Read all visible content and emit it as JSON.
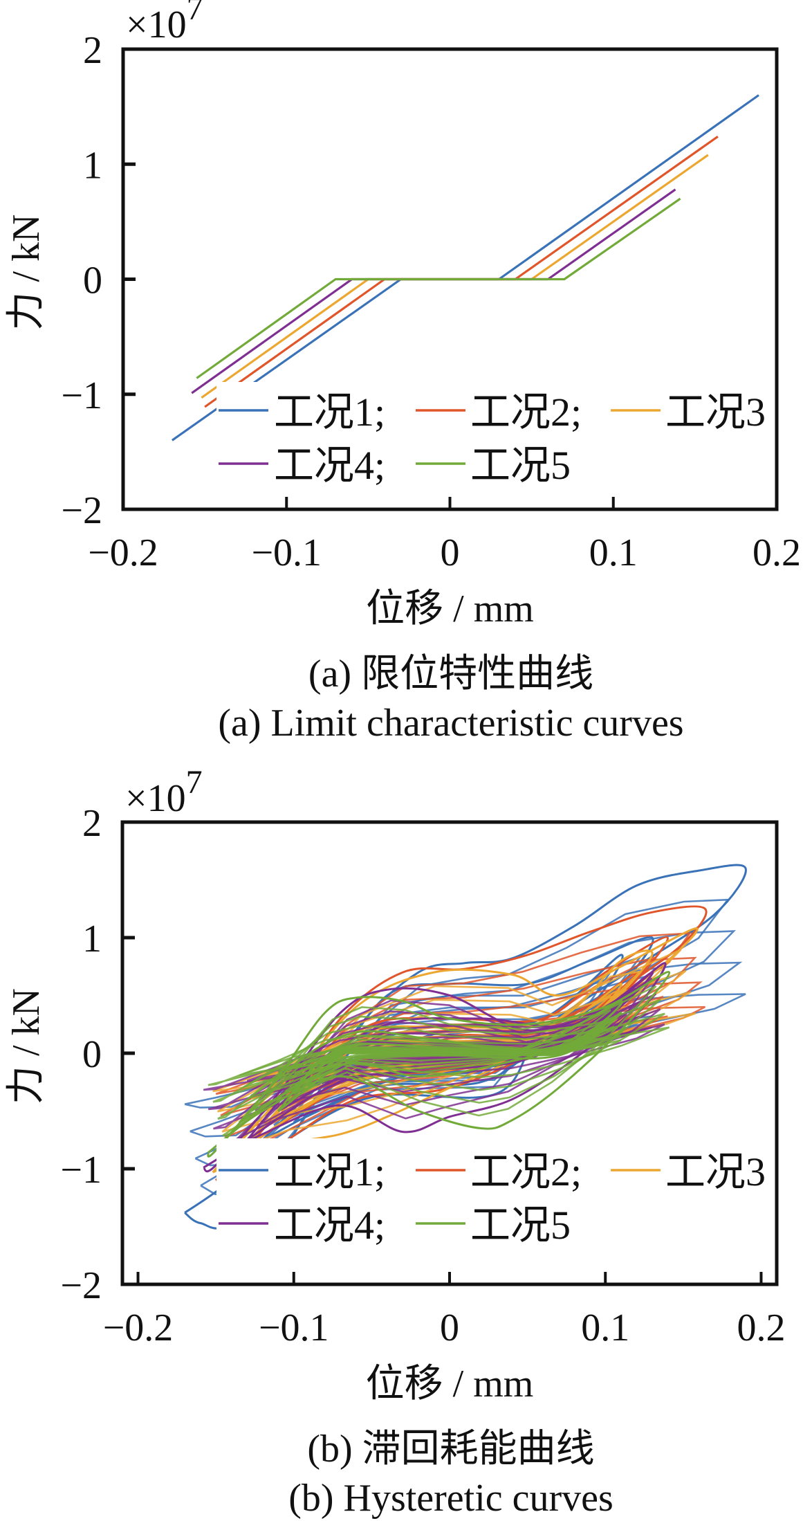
{
  "chart_data": [
    {
      "id": "a",
      "type": "line",
      "exponent_label": "×10",
      "exponent_power": "7",
      "xlabel": "位移 / mm",
      "ylabel": "力 / kN",
      "caption_cn": "(a)  限位特性曲线",
      "caption_en": "(a)  Limit characteristic curves",
      "xlim": [
        -0.2,
        0.2
      ],
      "ylim": [
        -2,
        2
      ],
      "xticks": [
        -0.2,
        -0.1,
        0,
        0.1,
        0.2
      ],
      "xtick_labels": [
        "−0.2",
        "−0.1",
        "0",
        "0.1",
        "0.2"
      ],
      "yticks": [
        -2,
        -1,
        0,
        1,
        2
      ],
      "ytick_labels": [
        "−2",
        "−1",
        "0",
        "1",
        "2"
      ],
      "y_scale_factor": 10000000,
      "grid": false,
      "legend": {
        "placement": "bottom-center",
        "columns": 3
      },
      "series": [
        {
          "name": "工况1;",
          "color": "#3a72b8",
          "points": [
            [
              -0.17,
              -1.4
            ],
            [
              -0.03,
              0
            ],
            [
              0.03,
              0
            ],
            [
              0.189,
              1.6
            ]
          ]
        },
        {
          "name": "工况2;",
          "color": "#e0552a",
          "points": [
            [
              -0.15,
              -1.11
            ],
            [
              -0.04,
              0
            ],
            [
              0.04,
              0
            ],
            [
              0.164,
              1.24
            ]
          ]
        },
        {
          "name": "工况3",
          "color": "#eca731",
          "points": [
            [
              -0.152,
              -1.03
            ],
            [
              -0.05,
              0
            ],
            [
              0.05,
              0
            ],
            [
              0.158,
              1.08
            ]
          ]
        },
        {
          "name": "工况4;",
          "color": "#7f2f91",
          "points": [
            [
              -0.158,
              -0.99
            ],
            [
              -0.06,
              0
            ],
            [
              0.06,
              0
            ],
            [
              0.138,
              0.78
            ]
          ]
        },
        {
          "name": "工况5",
          "color": "#72aa3a",
          "points": [
            [
              -0.155,
              -0.86
            ],
            [
              -0.07,
              0
            ],
            [
              0.07,
              0
            ],
            [
              0.141,
              0.7
            ]
          ]
        }
      ]
    },
    {
      "id": "b",
      "type": "line",
      "exponent_label": "×10",
      "exponent_power": "7",
      "xlabel": "位移 / mm",
      "ylabel": "力 / kN",
      "caption_cn": "(b)  滞回耗能曲线",
      "caption_en": "(b)  Hysteretic curves",
      "xlim": [
        -0.21,
        0.21
      ],
      "ylim": [
        -2,
        2
      ],
      "xticks": [
        -0.2,
        -0.1,
        0,
        0.1,
        0.2
      ],
      "xtick_labels": [
        "−0.2",
        "−0.1",
        "0",
        "0.1",
        "0.2"
      ],
      "yticks": [
        -2,
        -1,
        0,
        1,
        2
      ],
      "ytick_labels": [
        "−2",
        "−1",
        "0",
        "1",
        "2"
      ],
      "y_scale_factor": 10000000,
      "grid": false,
      "legend": {
        "placement": "bottom-center",
        "columns": 3
      },
      "series": [
        {
          "name": "工况1;",
          "color": "#3a72b8",
          "loops": [
            [
              [
                -0.17,
                -1.38
              ],
              [
                -0.16,
                -1.47
              ],
              [
                -0.14,
                -1.45
              ],
              [
                -0.1,
                -0.7
              ],
              [
                -0.06,
                0.2
              ],
              [
                -0.02,
                0.7
              ],
              [
                0.01,
                0.78
              ],
              [
                0.04,
                0.82
              ],
              [
                0.08,
                1.1
              ],
              [
                0.12,
                1.45
              ],
              [
                0.16,
                1.58
              ],
              [
                0.19,
                1.6
              ],
              [
                0.17,
                1.2
              ],
              [
                0.12,
                0.75
              ],
              [
                0.06,
                0.2
              ],
              [
                0.03,
                -0.35
              ],
              [
                -0.05,
                -0.38
              ],
              [
                -0.11,
                -0.8
              ],
              [
                -0.15,
                -1.2
              ],
              [
                -0.17,
                -1.38
              ]
            ],
            [
              [
                -0.12,
                -0.75
              ],
              [
                -0.08,
                -0.2
              ],
              [
                -0.04,
                0.5
              ],
              [
                0.0,
                0.6
              ],
              [
                0.05,
                0.6
              ],
              [
                0.09,
                0.8
              ],
              [
                0.13,
                1.0
              ],
              [
                0.11,
                0.6
              ],
              [
                0.06,
                0.1
              ],
              [
                0.02,
                -0.25
              ],
              [
                -0.05,
                -0.3
              ],
              [
                -0.12,
                -0.75
              ]
            ],
            [
              [
                -0.1,
                -0.6
              ],
              [
                -0.06,
                -0.1
              ],
              [
                0.0,
                0.2
              ],
              [
                0.06,
                0.3
              ],
              [
                0.11,
                0.85
              ],
              [
                0.09,
                0.4
              ],
              [
                0.04,
                -0.1
              ],
              [
                -0.03,
                -0.2
              ],
              [
                -0.1,
                -0.6
              ]
            ]
          ]
        },
        {
          "name": "工况2;",
          "color": "#e0552a",
          "loops": [
            [
              [
                -0.15,
                -1.1
              ],
              [
                -0.11,
                -0.5
              ],
              [
                -0.07,
                0.3
              ],
              [
                -0.03,
                0.7
              ],
              [
                0.01,
                0.73
              ],
              [
                0.05,
                0.85
              ],
              [
                0.09,
                1.05
              ],
              [
                0.13,
                1.22
              ],
              [
                0.164,
                1.25
              ],
              [
                0.15,
                0.95
              ],
              [
                0.11,
                0.55
              ],
              [
                0.06,
                0.05
              ],
              [
                0.0,
                -0.3
              ],
              [
                -0.06,
                -0.4
              ],
              [
                -0.11,
                -0.8
              ],
              [
                -0.15,
                -1.1
              ]
            ],
            [
              [
                -0.13,
                -0.8
              ],
              [
                -0.09,
                -0.2
              ],
              [
                -0.05,
                0.25
              ],
              [
                0.0,
                0.3
              ],
              [
                0.06,
                0.3
              ],
              [
                0.1,
                0.7
              ],
              [
                0.14,
                1.0
              ],
              [
                0.11,
                0.5
              ],
              [
                0.06,
                0.0
              ],
              [
                0.0,
                -0.15
              ],
              [
                -0.06,
                -0.25
              ],
              [
                -0.13,
                -0.8
              ]
            ],
            [
              [
                -0.11,
                -0.55
              ],
              [
                -0.07,
                0.0
              ],
              [
                0.0,
                0.15
              ],
              [
                0.06,
                0.2
              ],
              [
                0.12,
                0.7
              ],
              [
                0.08,
                0.25
              ],
              [
                0.02,
                -0.1
              ],
              [
                -0.05,
                -0.15
              ],
              [
                -0.11,
                -0.55
              ]
            ]
          ]
        },
        {
          "name": "工况3",
          "color": "#eca731",
          "loops": [
            [
              [
                -0.152,
                -1.03
              ],
              [
                -0.11,
                -0.4
              ],
              [
                -0.06,
                0.4
              ],
              [
                -0.01,
                0.7
              ],
              [
                0.04,
                0.68
              ],
              [
                0.07,
                0.5
              ],
              [
                0.11,
                0.75
              ],
              [
                0.158,
                1.08
              ],
              [
                0.14,
                0.8
              ],
              [
                0.1,
                0.4
              ],
              [
                0.05,
                0.0
              ],
              [
                0.0,
                -0.3
              ],
              [
                -0.04,
                -0.55
              ],
              [
                -0.07,
                -0.7
              ],
              [
                -0.11,
                -0.8
              ],
              [
                -0.152,
                -1.03
              ]
            ],
            [
              [
                -0.13,
                -0.8
              ],
              [
                -0.09,
                -0.2
              ],
              [
                -0.05,
                0.2
              ],
              [
                0.01,
                0.22
              ],
              [
                0.07,
                0.3
              ],
              [
                0.11,
                0.8
              ],
              [
                0.13,
                0.85
              ],
              [
                0.1,
                0.4
              ],
              [
                0.05,
                0.0
              ],
              [
                -0.01,
                -0.1
              ],
              [
                -0.07,
                -0.3
              ],
              [
                -0.13,
                -0.8
              ]
            ],
            [
              [
                -0.115,
                -0.6
              ],
              [
                -0.07,
                0.05
              ],
              [
                0.0,
                0.1
              ],
              [
                0.06,
                0.15
              ],
              [
                0.11,
                0.6
              ],
              [
                0.08,
                0.2
              ],
              [
                0.02,
                -0.05
              ],
              [
                -0.05,
                -0.2
              ],
              [
                -0.115,
                -0.6
              ]
            ]
          ]
        },
        {
          "name": "工况4;",
          "color": "#7f2f91",
          "loops": [
            [
              [
                -0.158,
                -0.99
              ],
              [
                -0.15,
                -0.97
              ],
              [
                -0.11,
                -0.35
              ],
              [
                -0.07,
                0.35
              ],
              [
                -0.04,
                0.55
              ],
              [
                0.0,
                0.5
              ],
              [
                0.05,
                0.2
              ],
              [
                0.1,
                0.4
              ],
              [
                0.138,
                0.78
              ],
              [
                0.12,
                0.4
              ],
              [
                0.08,
                -0.05
              ],
              [
                0.04,
                -0.4
              ],
              [
                0.0,
                -0.55
              ],
              [
                -0.03,
                -0.68
              ],
              [
                -0.07,
                -0.45
              ],
              [
                -0.12,
                -0.7
              ],
              [
                -0.158,
                -0.99
              ]
            ],
            [
              [
                -0.13,
                -0.75
              ],
              [
                -0.09,
                -0.15
              ],
              [
                -0.04,
                0.25
              ],
              [
                0.02,
                0.3
              ],
              [
                0.08,
                0.25
              ],
              [
                0.13,
                0.7
              ],
              [
                0.1,
                0.3
              ],
              [
                0.05,
                -0.05
              ],
              [
                -0.01,
                -0.15
              ],
              [
                -0.07,
                -0.25
              ],
              [
                -0.13,
                -0.75
              ]
            ],
            [
              [
                -0.11,
                -0.5
              ],
              [
                -0.07,
                0.05
              ],
              [
                0.0,
                0.08
              ],
              [
                0.07,
                0.12
              ],
              [
                0.12,
                0.55
              ],
              [
                0.08,
                0.15
              ],
              [
                0.02,
                -0.05
              ],
              [
                -0.05,
                -0.1
              ],
              [
                -0.11,
                -0.5
              ]
            ]
          ]
        },
        {
          "name": "工况5",
          "color": "#72aa3a",
          "loops": [
            [
              [
                -0.155,
                -0.86
              ],
              [
                -0.15,
                -0.84
              ],
              [
                -0.11,
                -0.2
              ],
              [
                -0.08,
                0.35
              ],
              [
                -0.06,
                0.48
              ],
              [
                -0.03,
                0.45
              ],
              [
                0.0,
                0.3
              ],
              [
                0.05,
                0.25
              ],
              [
                0.1,
                0.4
              ],
              [
                0.141,
                0.7
              ],
              [
                0.11,
                0.2
              ],
              [
                0.07,
                -0.3
              ],
              [
                0.04,
                -0.58
              ],
              [
                0.02,
                -0.65
              ],
              [
                -0.02,
                -0.5
              ],
              [
                -0.07,
                -0.2
              ],
              [
                -0.12,
                -0.5
              ],
              [
                -0.155,
                -0.86
              ]
            ],
            [
              [
                -0.135,
                -0.6
              ],
              [
                -0.1,
                -0.1
              ],
              [
                -0.06,
                0.18
              ],
              [
                -0.01,
                0.12
              ],
              [
                0.05,
                0.05
              ],
              [
                0.11,
                0.45
              ],
              [
                0.08,
                0.1
              ],
              [
                0.03,
                -0.1
              ],
              [
                -0.02,
                -0.2
              ],
              [
                -0.07,
                -0.1
              ],
              [
                -0.135,
                -0.6
              ]
            ],
            [
              [
                -0.11,
                -0.5
              ],
              [
                -0.07,
                0.04
              ],
              [
                0.0,
                0.04
              ],
              [
                0.07,
                0.04
              ],
              [
                0.11,
                0.35
              ],
              [
                0.07,
                -0.02
              ],
              [
                0.0,
                -0.02
              ],
              [
                -0.06,
                -0.05
              ],
              [
                -0.11,
                -0.5
              ]
            ],
            [
              [
                -0.1,
                -0.35
              ],
              [
                -0.072,
                0.02
              ],
              [
                0.0,
                0.02
              ],
              [
                0.072,
                0.02
              ],
              [
                0.1,
                0.25
              ],
              [
                0.072,
                0.0
              ],
              [
                0.0,
                0.0
              ],
              [
                -0.072,
                0.0
              ],
              [
                -0.1,
                -0.35
              ]
            ]
          ]
        }
      ]
    }
  ]
}
